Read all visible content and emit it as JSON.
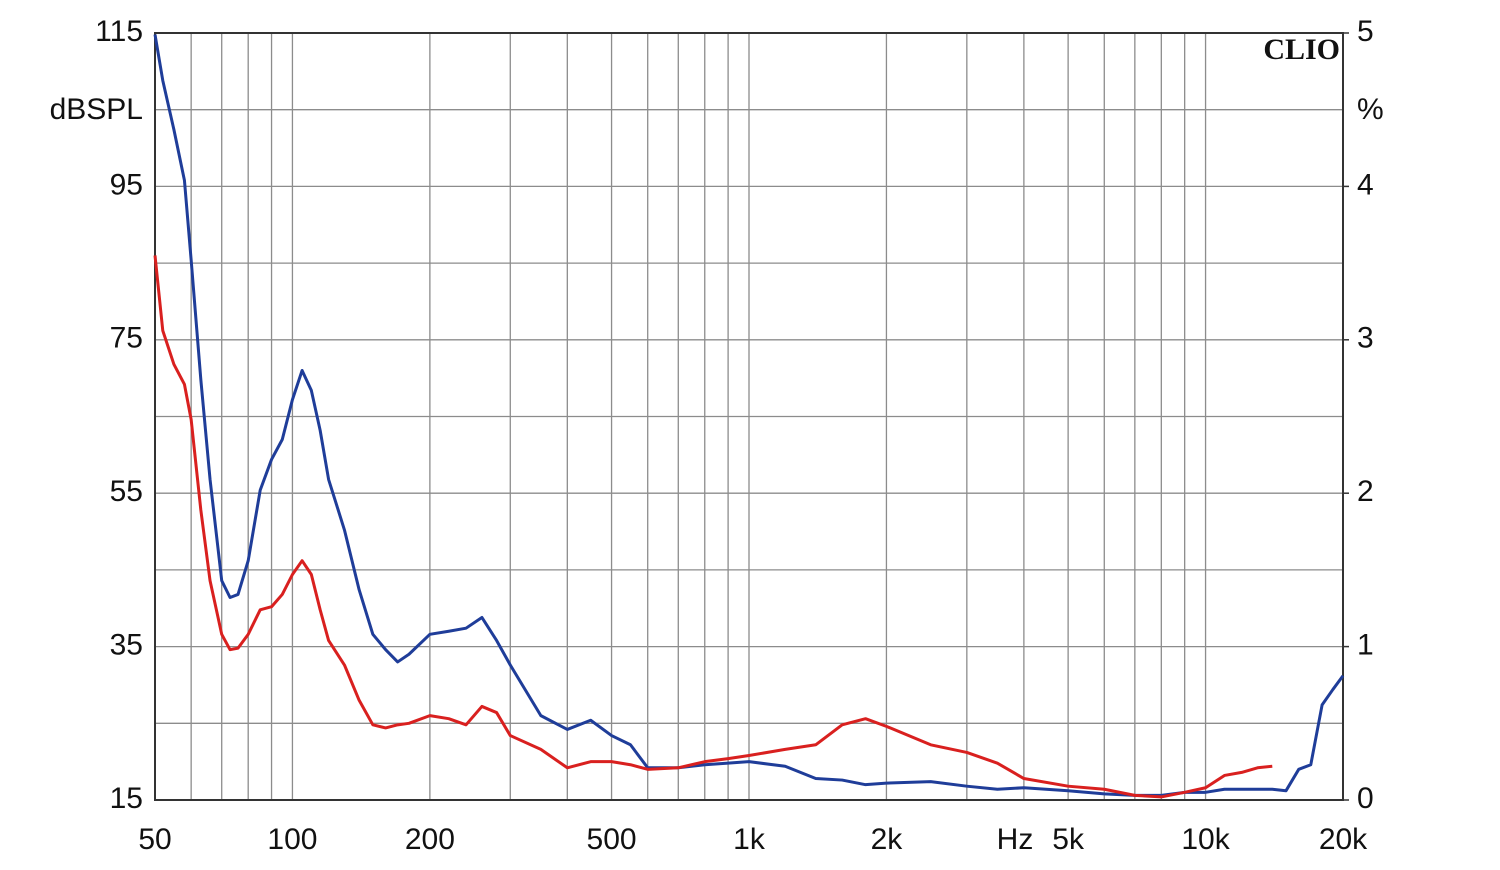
{
  "chart_data": {
    "type": "line",
    "annotation": "CLIO",
    "ylabel": "dBSPL",
    "y2label": "%",
    "xlabel": "Hz",
    "xscale": "log",
    "grid": true,
    "xlim": [
      50,
      20000
    ],
    "xticks": [
      50,
      100,
      200,
      500,
      {
        "value": 1000,
        "label": "1k"
      },
      {
        "value": 2000,
        "label": "2k"
      },
      {
        "value": 5000,
        "label": "5k"
      },
      {
        "value": 10000,
        "label": "10k"
      },
      {
        "value": 20000,
        "label": "20k"
      }
    ],
    "xgrid": [
      60,
      70,
      80,
      90,
      300,
      400,
      600,
      700,
      800,
      900,
      3000,
      4000,
      6000,
      7000,
      8000,
      9000
    ],
    "ylim": [
      15,
      115
    ],
    "yticks": [
      15,
      35,
      55,
      75,
      95,
      115
    ],
    "ygrid": [
      25,
      45,
      65,
      85,
      105
    ],
    "y2lim": [
      0,
      5
    ],
    "y2ticks": [
      0,
      1,
      2,
      3,
      4,
      5
    ],
    "x": [
      50,
      52,
      55,
      58,
      60,
      63,
      66,
      70,
      73,
      76,
      80,
      85,
      90,
      95,
      100,
      105,
      110,
      115,
      120,
      130,
      140,
      150,
      160,
      170,
      180,
      200,
      220,
      240,
      260,
      280,
      300,
      350,
      400,
      450,
      500,
      550,
      600,
      700,
      800,
      900,
      1000,
      1200,
      1400,
      1600,
      1800,
      2000,
      2500,
      3000,
      3500,
      4000,
      5000,
      6000,
      7000,
      8000,
      9000,
      10000,
      11000,
      12000,
      13000,
      14000,
      15000,
      16000,
      17000,
      18000,
      19000,
      20000
    ],
    "series": [
      {
        "color": "#1f3d99",
        "axis": "y2",
        "values": [
          4.99,
          4.69,
          4.37,
          4.04,
          3.52,
          2.74,
          2.09,
          1.43,
          1.32,
          1.34,
          1.56,
          2.02,
          2.22,
          2.35,
          2.61,
          2.8,
          2.67,
          2.41,
          2.09,
          1.76,
          1.37,
          1.08,
          0.98,
          0.9,
          0.95,
          1.08,
          1.1,
          1.12,
          1.19,
          1.04,
          0.88,
          0.55,
          0.46,
          0.52,
          0.42,
          0.36,
          0.21,
          0.21,
          0.23,
          0.24,
          0.25,
          0.22,
          0.14,
          0.13,
          0.1,
          0.11,
          0.12,
          0.09,
          0.07,
          0.08,
          0.06,
          0.04,
          0.03,
          0.03,
          0.05,
          0.05,
          0.07,
          0.07,
          0.07,
          0.07,
          0.06,
          0.2,
          0.23,
          0.62,
          0.72,
          0.81
        ]
      },
      {
        "color": "#d9201f",
        "axis": "y2",
        "values": [
          3.55,
          3.06,
          2.84,
          2.71,
          2.48,
          1.89,
          1.43,
          1.08,
          0.98,
          0.99,
          1.08,
          1.24,
          1.26,
          1.34,
          1.47,
          1.56,
          1.47,
          1.24,
          1.04,
          0.88,
          0.65,
          0.49,
          0.47,
          0.49,
          0.5,
          0.55,
          0.53,
          0.49,
          0.61,
          0.57,
          0.42,
          0.33,
          0.21,
          0.25,
          0.25,
          0.23,
          0.2,
          0.21,
          0.25,
          0.27,
          0.29,
          0.33,
          0.36,
          0.49,
          0.53,
          0.48,
          0.36,
          0.31,
          0.24,
          0.14,
          0.09,
          0.07,
          0.03,
          0.02,
          0.05,
          0.08,
          0.16,
          0.18,
          0.21,
          0.22,
          null,
          null,
          null,
          null,
          null,
          null
        ]
      }
    ]
  }
}
